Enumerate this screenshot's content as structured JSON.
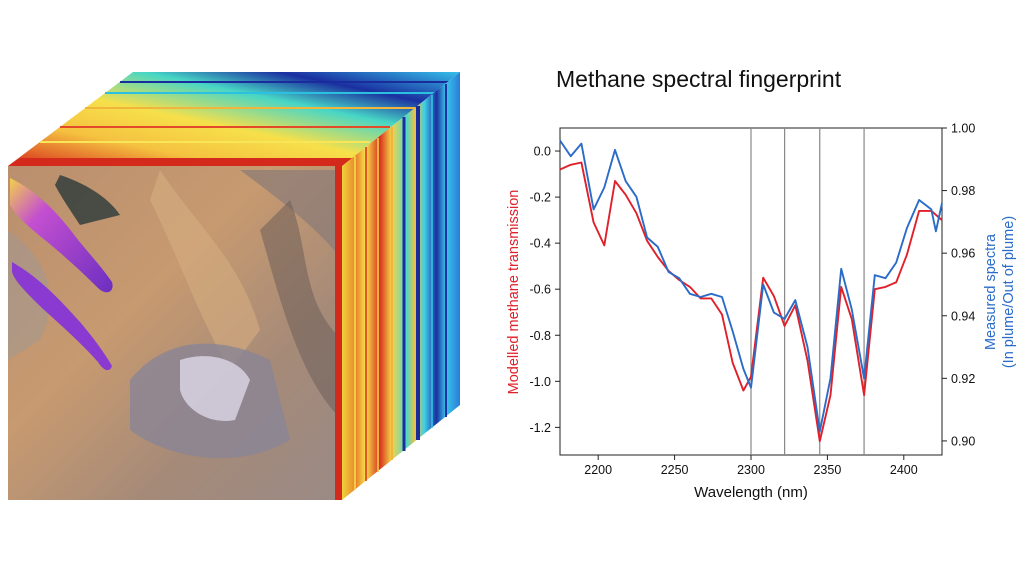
{
  "cube_image": {
    "description_icon": "hyperspectral-cube-icon",
    "colors": {
      "face_red": "#d42a1c",
      "band_yellow": "#f6e04a",
      "band_cyan": "#3fd8e0",
      "band_blue": "#1030a0",
      "plume": "#9a3cd8",
      "desert": "#b08b68"
    }
  },
  "chart_data": {
    "type": "line",
    "title": "Methane spectral fingerprint",
    "xlabel": "Wavelength (nm)",
    "ylabel": "Modelled methane transmission",
    "ylabel_right_1": "Measured spectra",
    "ylabel_right_2": "(In plume/Out of plume)",
    "xlim": [
      2175,
      2425
    ],
    "ylim": [
      -1.32,
      0.1
    ],
    "ylim_right": [
      0.8955,
      1.0
    ],
    "xticks": [
      2200,
      2250,
      2300,
      2350,
      2400
    ],
    "yticks": [
      0.0,
      -0.2,
      -0.4,
      -0.6,
      -0.8,
      -1.0,
      -1.2
    ],
    "yticks_right": [
      1.0,
      0.98,
      0.96,
      0.94,
      0.92,
      0.9
    ],
    "vlines": [
      2300,
      2322,
      2345,
      2374
    ],
    "grid": false,
    "series": [
      {
        "axis": "left",
        "color": "#e0202a",
        "x": [
          2175,
          2182,
          2189,
          2197,
          2204,
          2211,
          2218,
          2225,
          2232,
          2239,
          2246,
          2253,
          2260,
          2267,
          2274,
          2281,
          2288,
          2295,
          2300,
          2308,
          2315,
          2322,
          2329,
          2337,
          2345,
          2352,
          2359,
          2366,
          2374,
          2381,
          2388,
          2395,
          2402,
          2410,
          2418,
          2425
        ],
        "values": [
          -0.08,
          -0.06,
          -0.05,
          -0.31,
          -0.41,
          -0.13,
          -0.19,
          -0.27,
          -0.39,
          -0.46,
          -0.52,
          -0.56,
          -0.59,
          -0.64,
          -0.64,
          -0.71,
          -0.92,
          -1.04,
          -0.98,
          -0.55,
          -0.63,
          -0.76,
          -0.67,
          -0.91,
          -1.26,
          -1.06,
          -0.59,
          -0.73,
          -1.06,
          -0.6,
          -0.59,
          -0.57,
          -0.45,
          -0.26,
          -0.26,
          -0.3
        ]
      },
      {
        "axis": "right",
        "color": "#2a6cc8",
        "x": [
          2175,
          2182,
          2189,
          2197,
          2204,
          2211,
          2218,
          2225,
          2232,
          2239,
          2246,
          2253,
          2260,
          2267,
          2274,
          2281,
          2288,
          2295,
          2300,
          2308,
          2315,
          2322,
          2329,
          2337,
          2345,
          2352,
          2359,
          2366,
          2374,
          2381,
          2388,
          2395,
          2402,
          2410,
          2418,
          2421,
          2425
        ],
        "values": [
          0.996,
          0.991,
          0.995,
          0.974,
          0.981,
          0.993,
          0.983,
          0.978,
          0.965,
          0.962,
          0.954,
          0.952,
          0.947,
          0.946,
          0.947,
          0.946,
          0.935,
          0.923,
          0.917,
          0.95,
          0.941,
          0.939,
          0.945,
          0.93,
          0.903,
          0.92,
          0.955,
          0.942,
          0.92,
          0.953,
          0.952,
          0.957,
          0.968,
          0.977,
          0.974,
          0.967,
          0.976
        ]
      }
    ]
  }
}
